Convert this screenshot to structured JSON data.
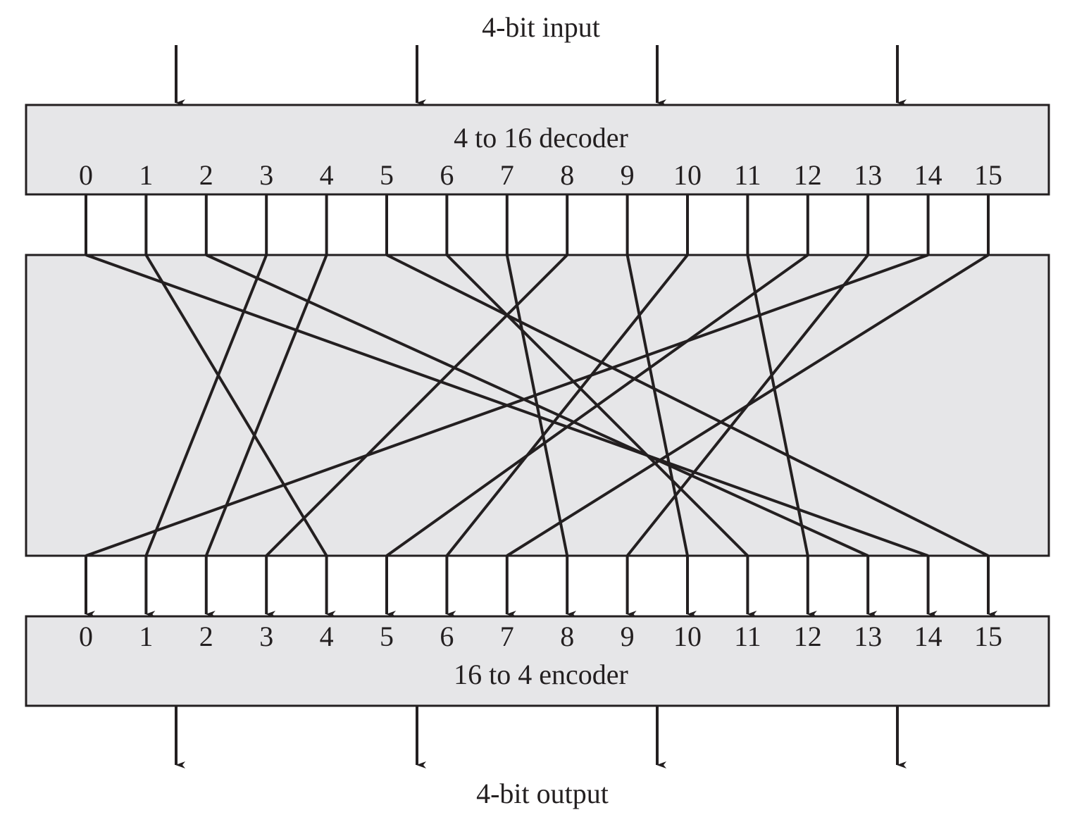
{
  "input_label": "4-bit input",
  "output_label": "4-bit output",
  "decoder_label": "4 to 16 decoder",
  "encoder_label": "16 to 4 encoder",
  "decoder_outputs": [
    "0",
    "1",
    "2",
    "3",
    "4",
    "5",
    "6",
    "7",
    "8",
    "9",
    "10",
    "11",
    "12",
    "13",
    "14",
    "15"
  ],
  "encoder_inputs": [
    "0",
    "1",
    "2",
    "3",
    "4",
    "5",
    "6",
    "7",
    "8",
    "9",
    "10",
    "11",
    "12",
    "13",
    "14",
    "15"
  ],
  "input_bit_count": 4,
  "output_bit_count": 4,
  "permutation": [
    {
      "from": 0,
      "to": 14
    },
    {
      "from": 1,
      "to": 4
    },
    {
      "from": 2,
      "to": 13
    },
    {
      "from": 3,
      "to": 1
    },
    {
      "from": 4,
      "to": 2
    },
    {
      "from": 5,
      "to": 15
    },
    {
      "from": 6,
      "to": 11
    },
    {
      "from": 7,
      "to": 8
    },
    {
      "from": 8,
      "to": 3
    },
    {
      "from": 9,
      "to": 10
    },
    {
      "from": 10,
      "to": 6
    },
    {
      "from": 11,
      "to": 12
    },
    {
      "from": 12,
      "to": 5
    },
    {
      "from": 13,
      "to": 9
    },
    {
      "from": 14,
      "to": 0
    },
    {
      "from": 15,
      "to": 7
    }
  ],
  "colors": {
    "box_fill": "#e6e6e8",
    "line": "#231f20"
  }
}
